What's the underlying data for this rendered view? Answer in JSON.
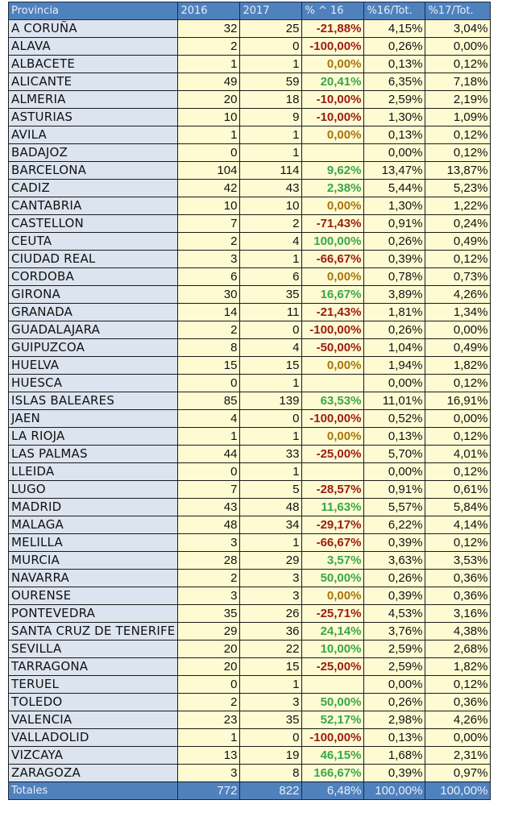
{
  "table": {
    "headers": [
      "Provincia",
      "2016",
      "2017",
      "% ^ 16",
      "%16/Tot.",
      "%17/Tot."
    ],
    "rows": [
      {
        "provincia": "A CORUÑA",
        "y2016": "32",
        "y2017": "25",
        "var": "-21,88%",
        "trend": "neg",
        "p16": "4,15%",
        "p17": "3,04%"
      },
      {
        "provincia": "ALAVA",
        "y2016": "2",
        "y2017": "0",
        "var": "-100,00%",
        "trend": "neg",
        "p16": "0,26%",
        "p17": "0,00%"
      },
      {
        "provincia": "ALBACETE",
        "y2016": "1",
        "y2017": "1",
        "var": "0,00%",
        "trend": "zero",
        "p16": "0,13%",
        "p17": "0,12%"
      },
      {
        "provincia": "ALICANTE",
        "y2016": "49",
        "y2017": "59",
        "var": "20,41%",
        "trend": "pos",
        "p16": "6,35%",
        "p17": "7,18%"
      },
      {
        "provincia": "ALMERIA",
        "y2016": "20",
        "y2017": "18",
        "var": "-10,00%",
        "trend": "neg",
        "p16": "2,59%",
        "p17": "2,19%"
      },
      {
        "provincia": "ASTURIAS",
        "y2016": "10",
        "y2017": "9",
        "var": "-10,00%",
        "trend": "neg",
        "p16": "1,30%",
        "p17": "1,09%"
      },
      {
        "provincia": "AVILA",
        "y2016": "1",
        "y2017": "1",
        "var": "0,00%",
        "trend": "zero",
        "p16": "0,13%",
        "p17": "0,12%"
      },
      {
        "provincia": "BADAJOZ",
        "y2016": "0",
        "y2017": "1",
        "var": "",
        "trend": "empty",
        "p16": "0,00%",
        "p17": "0,12%"
      },
      {
        "provincia": "BARCELONA",
        "y2016": "104",
        "y2017": "114",
        "var": "9,62%",
        "trend": "pos",
        "p16": "13,47%",
        "p17": "13,87%"
      },
      {
        "provincia": "CADIZ",
        "y2016": "42",
        "y2017": "43",
        "var": "2,38%",
        "trend": "pos",
        "p16": "5,44%",
        "p17": "5,23%"
      },
      {
        "provincia": "CANTABRIA",
        "y2016": "10",
        "y2017": "10",
        "var": "0,00%",
        "trend": "zero",
        "p16": "1,30%",
        "p17": "1,22%"
      },
      {
        "provincia": "CASTELLON",
        "y2016": "7",
        "y2017": "2",
        "var": "-71,43%",
        "trend": "neg",
        "p16": "0,91%",
        "p17": "0,24%"
      },
      {
        "provincia": "CEUTA",
        "y2016": "2",
        "y2017": "4",
        "var": "100,00%",
        "trend": "pos",
        "p16": "0,26%",
        "p17": "0,49%"
      },
      {
        "provincia": "CIUDAD REAL",
        "y2016": "3",
        "y2017": "1",
        "var": "-66,67%",
        "trend": "neg",
        "p16": "0,39%",
        "p17": "0,12%"
      },
      {
        "provincia": "CORDOBA",
        "y2016": "6",
        "y2017": "6",
        "var": "0,00%",
        "trend": "zero",
        "p16": "0,78%",
        "p17": "0,73%"
      },
      {
        "provincia": "GIRONA",
        "y2016": "30",
        "y2017": "35",
        "var": "16,67%",
        "trend": "pos",
        "p16": "3,89%",
        "p17": "4,26%"
      },
      {
        "provincia": "GRANADA",
        "y2016": "14",
        "y2017": "11",
        "var": "-21,43%",
        "trend": "neg",
        "p16": "1,81%",
        "p17": "1,34%"
      },
      {
        "provincia": "GUADALAJARA",
        "y2016": "2",
        "y2017": "0",
        "var": "-100,00%",
        "trend": "neg",
        "p16": "0,26%",
        "p17": "0,00%"
      },
      {
        "provincia": "GUIPUZCOA",
        "y2016": "8",
        "y2017": "4",
        "var": "-50,00%",
        "trend": "neg",
        "p16": "1,04%",
        "p17": "0,49%"
      },
      {
        "provincia": "HUELVA",
        "y2016": "15",
        "y2017": "15",
        "var": "0,00%",
        "trend": "zero",
        "p16": "1,94%",
        "p17": "1,82%"
      },
      {
        "provincia": "HUESCA",
        "y2016": "0",
        "y2017": "1",
        "var": "",
        "trend": "empty",
        "p16": "0,00%",
        "p17": "0,12%"
      },
      {
        "provincia": "ISLAS BALEARES",
        "y2016": "85",
        "y2017": "139",
        "var": "63,53%",
        "trend": "pos",
        "p16": "11,01%",
        "p17": "16,91%"
      },
      {
        "provincia": "JAEN",
        "y2016": "4",
        "y2017": "0",
        "var": "-100,00%",
        "trend": "neg",
        "p16": "0,52%",
        "p17": "0,00%"
      },
      {
        "provincia": "LA RIOJA",
        "y2016": "1",
        "y2017": "1",
        "var": "0,00%",
        "trend": "zero",
        "p16": "0,13%",
        "p17": "0,12%"
      },
      {
        "provincia": "LAS PALMAS",
        "y2016": "44",
        "y2017": "33",
        "var": "-25,00%",
        "trend": "neg",
        "p16": "5,70%",
        "p17": "4,01%"
      },
      {
        "provincia": "LLEIDA",
        "y2016": "0",
        "y2017": "1",
        "var": "",
        "trend": "empty",
        "p16": "0,00%",
        "p17": "0,12%"
      },
      {
        "provincia": "LUGO",
        "y2016": "7",
        "y2017": "5",
        "var": "-28,57%",
        "trend": "neg",
        "p16": "0,91%",
        "p17": "0,61%"
      },
      {
        "provincia": "MADRID",
        "y2016": "43",
        "y2017": "48",
        "var": "11,63%",
        "trend": "pos",
        "p16": "5,57%",
        "p17": "5,84%"
      },
      {
        "provincia": "MALAGA",
        "y2016": "48",
        "y2017": "34",
        "var": "-29,17%",
        "trend": "neg",
        "p16": "6,22%",
        "p17": "4,14%"
      },
      {
        "provincia": "MELILLA",
        "y2016": "3",
        "y2017": "1",
        "var": "-66,67%",
        "trend": "neg",
        "p16": "0,39%",
        "p17": "0,12%"
      },
      {
        "provincia": "MURCIA",
        "y2016": "28",
        "y2017": "29",
        "var": "3,57%",
        "trend": "pos",
        "p16": "3,63%",
        "p17": "3,53%"
      },
      {
        "provincia": "NAVARRA",
        "y2016": "2",
        "y2017": "3",
        "var": "50,00%",
        "trend": "pos",
        "p16": "0,26%",
        "p17": "0,36%"
      },
      {
        "provincia": "OURENSE",
        "y2016": "3",
        "y2017": "3",
        "var": "0,00%",
        "trend": "zero",
        "p16": "0,39%",
        "p17": "0,36%"
      },
      {
        "provincia": "PONTEVEDRA",
        "y2016": "35",
        "y2017": "26",
        "var": "-25,71%",
        "trend": "neg",
        "p16": "4,53%",
        "p17": "3,16%"
      },
      {
        "provincia": "SANTA CRUZ DE TENERIFE",
        "y2016": "29",
        "y2017": "36",
        "var": "24,14%",
        "trend": "pos",
        "p16": "3,76%",
        "p17": "4,38%"
      },
      {
        "provincia": "SEVILLA",
        "y2016": "20",
        "y2017": "22",
        "var": "10,00%",
        "trend": "pos",
        "p16": "2,59%",
        "p17": "2,68%"
      },
      {
        "provincia": "TARRAGONA",
        "y2016": "20",
        "y2017": "15",
        "var": "-25,00%",
        "trend": "neg",
        "p16": "2,59%",
        "p17": "1,82%"
      },
      {
        "provincia": "TERUEL",
        "y2016": "0",
        "y2017": "1",
        "var": "",
        "trend": "empty",
        "p16": "0,00%",
        "p17": "0,12%"
      },
      {
        "provincia": "TOLEDO",
        "y2016": "2",
        "y2017": "3",
        "var": "50,00%",
        "trend": "pos",
        "p16": "0,26%",
        "p17": "0,36%"
      },
      {
        "provincia": "VALENCIA",
        "y2016": "23",
        "y2017": "35",
        "var": "52,17%",
        "trend": "pos",
        "p16": "2,98%",
        "p17": "4,26%"
      },
      {
        "provincia": "VALLADOLID",
        "y2016": "1",
        "y2017": "0",
        "var": "-100,00%",
        "trend": "neg",
        "p16": "0,13%",
        "p17": "0,00%"
      },
      {
        "provincia": "VIZCAYA",
        "y2016": "13",
        "y2017": "19",
        "var": "46,15%",
        "trend": "pos",
        "p16": "1,68%",
        "p17": "2,31%"
      },
      {
        "provincia": "ZARAGOZA",
        "y2016": "3",
        "y2017": "8",
        "var": "166,67%",
        "trend": "pos",
        "p16": "0,39%",
        "p17": "0,97%"
      }
    ],
    "totals": {
      "label": "Totales",
      "y2016": "772",
      "y2017": "822",
      "var": "6,48%",
      "p16": "100,00%",
      "p17": "100,00%"
    }
  },
  "colors": {
    "header_bg": "#4f81bd",
    "province_bg": "#dce4ef",
    "cell_bg": "#fefbd3",
    "negative": "#9c1c10",
    "zero": "#a8740a",
    "positive": "#3aa64a"
  }
}
